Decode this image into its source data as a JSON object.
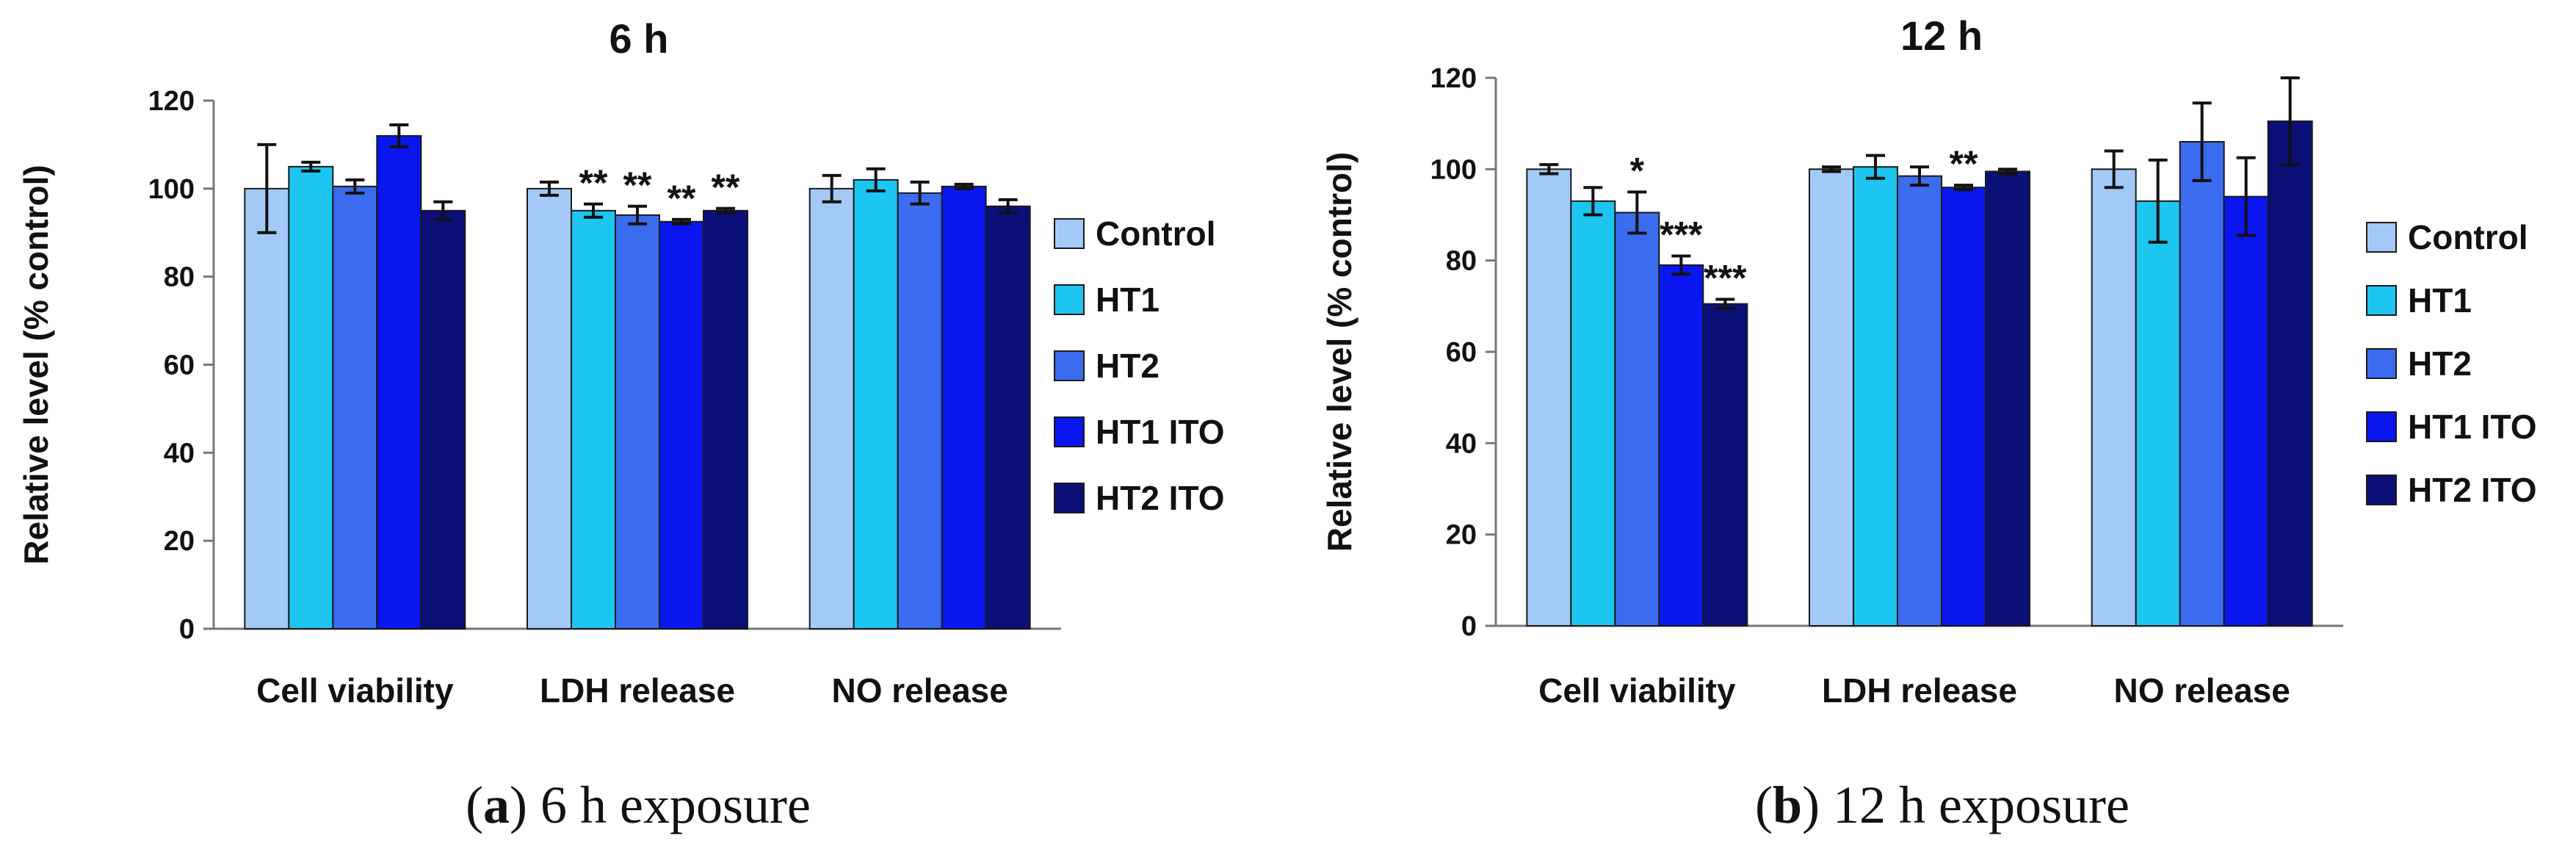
{
  "colors": {
    "Control": "#a3c9f7",
    "HT1": "#1cc6f0",
    "HT2": "#3b6cf0",
    "HT1 ITO": "#0a16f0",
    "HT2 ITO": "#0b0f78"
  },
  "chart_data": [
    {
      "type": "bar",
      "title": "6 h",
      "caption_letter": "a",
      "caption_text": ") 6 h exposure",
      "xlabel": "",
      "ylabel": "Relative level (% control)",
      "ylim": [
        0,
        120
      ],
      "yticks": [
        0,
        20,
        40,
        60,
        80,
        100,
        120
      ],
      "categories": [
        "Cell viability",
        "LDH release",
        "NO release"
      ],
      "legend": [
        "Control",
        "HT1",
        "HT2",
        "HT1 ITO",
        "HT2 ITO"
      ],
      "legend_position": "right",
      "series": [
        {
          "name": "Control",
          "values": [
            100,
            100,
            100
          ],
          "errors": [
            10,
            1.5,
            3
          ],
          "sig": [
            "",
            "",
            ""
          ]
        },
        {
          "name": "HT1",
          "values": [
            105,
            95,
            102
          ],
          "errors": [
            1,
            1.5,
            2.5
          ],
          "sig": [
            "",
            "**",
            ""
          ]
        },
        {
          "name": "HT2",
          "values": [
            100.5,
            94,
            99
          ],
          "errors": [
            1.5,
            2,
            2.5
          ],
          "sig": [
            "",
            "**",
            ""
          ]
        },
        {
          "name": "HT1 ITO",
          "values": [
            112,
            92.5,
            100.5
          ],
          "errors": [
            2.5,
            0.5,
            0.5
          ],
          "sig": [
            "",
            "**",
            ""
          ]
        },
        {
          "name": "HT2 ITO",
          "values": [
            95,
            95,
            96
          ],
          "errors": [
            2,
            0.5,
            1.5
          ],
          "sig": [
            "",
            "**",
            ""
          ]
        }
      ]
    },
    {
      "type": "bar",
      "title": "12 h",
      "caption_letter": "b",
      "caption_text": ") 12 h exposure",
      "xlabel": "",
      "ylabel": "Relative level (% control)",
      "ylim": [
        0,
        120
      ],
      "yticks": [
        0,
        20,
        40,
        60,
        80,
        100,
        120
      ],
      "categories": [
        "Cell viability",
        "LDH release",
        "NO release"
      ],
      "legend": [
        "Control",
        "HT1",
        "HT2",
        "HT1 ITO",
        "HT2 ITO"
      ],
      "legend_position": "right",
      "series": [
        {
          "name": "Control",
          "values": [
            100,
            100,
            100
          ],
          "errors": [
            1,
            0.5,
            4
          ],
          "sig": [
            "",
            "",
            ""
          ]
        },
        {
          "name": "HT1",
          "values": [
            93,
            100.5,
            93
          ],
          "errors": [
            3,
            2.5,
            9
          ],
          "sig": [
            "",
            "",
            ""
          ]
        },
        {
          "name": "HT2",
          "values": [
            90.5,
            98.5,
            106
          ],
          "errors": [
            4.5,
            2,
            8.5
          ],
          "sig": [
            "*",
            "",
            ""
          ]
        },
        {
          "name": "HT1 ITO",
          "values": [
            79,
            96,
            94
          ],
          "errors": [
            2,
            0.5,
            8.5
          ],
          "sig": [
            "***",
            "**",
            ""
          ]
        },
        {
          "name": "HT2 ITO",
          "values": [
            70.5,
            99.5,
            110.5
          ],
          "errors": [
            1,
            0.5,
            9.5
          ],
          "sig": [
            "***",
            "",
            ""
          ]
        }
      ]
    }
  ]
}
